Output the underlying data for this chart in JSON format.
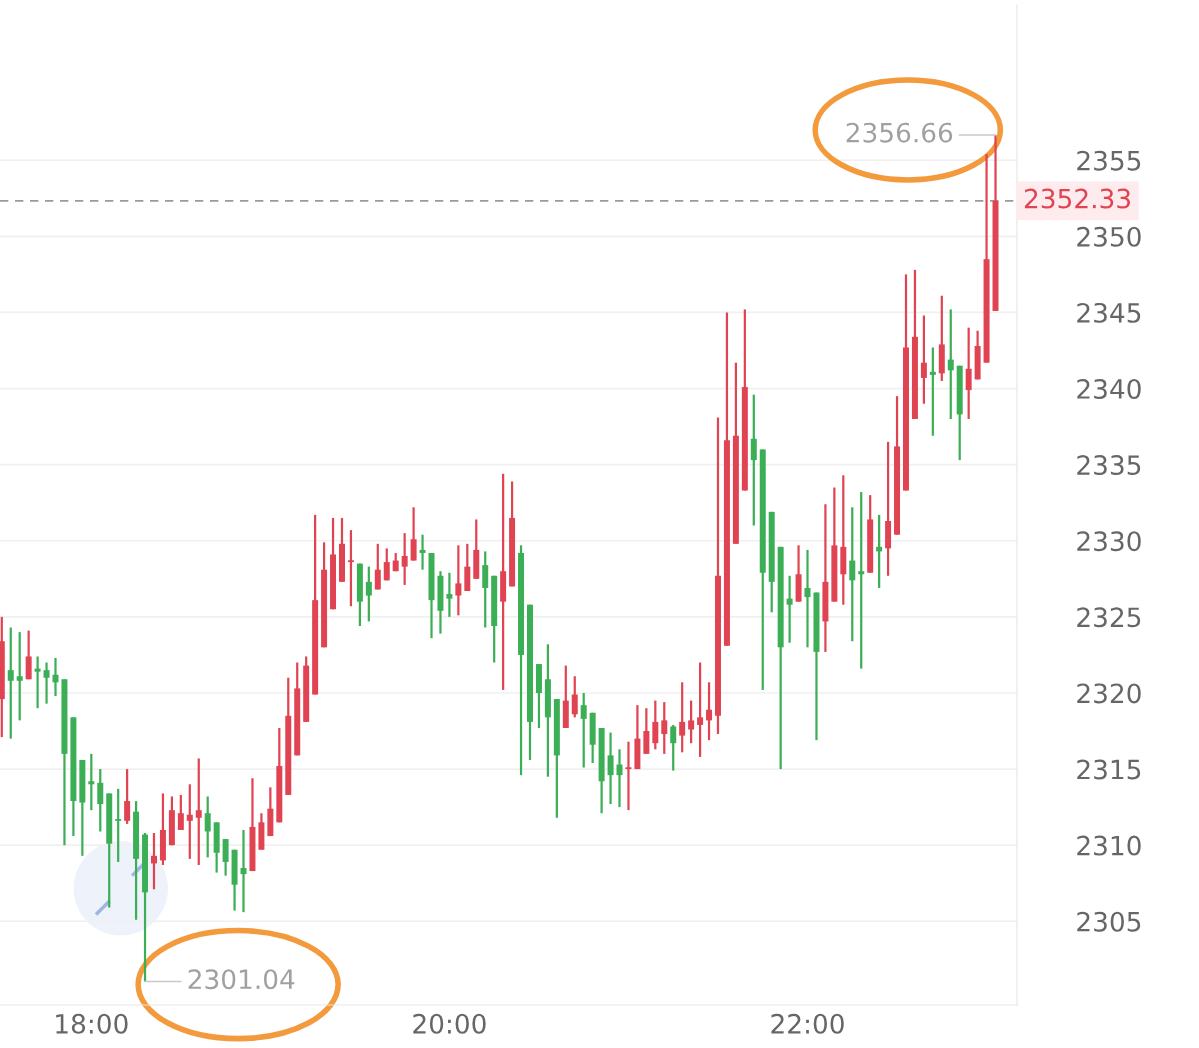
{
  "chart_data": {
    "type": "candlestick",
    "x": [
      17.5,
      17.55,
      17.6,
      17.65,
      17.7,
      17.75,
      17.8,
      17.85,
      17.9,
      17.95,
      18.0,
      18.05,
      18.1,
      18.15,
      18.2,
      18.25,
      18.3,
      18.35,
      18.4,
      18.45,
      18.5,
      18.55,
      18.6,
      18.65,
      18.7,
      18.75,
      18.8,
      18.85,
      18.9,
      18.95,
      19.0,
      19.05,
      19.1,
      19.15,
      19.2,
      19.25,
      19.3,
      19.35,
      19.4,
      19.45,
      19.5,
      19.55,
      19.6,
      19.65,
      19.7,
      19.75,
      19.8,
      19.85,
      19.9,
      19.95,
      20.0,
      20.05,
      20.1,
      20.15,
      20.2,
      20.25,
      20.3,
      20.35,
      20.4,
      20.45,
      20.5,
      20.55,
      20.6,
      20.65,
      20.7,
      20.75,
      20.8,
      20.85,
      20.9,
      20.95,
      21.0,
      21.05,
      21.1,
      21.15,
      21.2,
      21.25,
      21.3,
      21.35,
      21.4,
      21.45,
      21.5,
      21.55,
      21.6,
      21.65,
      21.7,
      21.75,
      21.8,
      21.85,
      21.9,
      21.95,
      22.0,
      22.05,
      22.1,
      22.15,
      22.2,
      22.25,
      22.3,
      22.35,
      22.4,
      22.45,
      22.5,
      22.55,
      22.6,
      22.65,
      22.7,
      22.75,
      22.8,
      22.85,
      22.9,
      22.95,
      23.0,
      23.05
    ],
    "ohlc": [
      [
        2319.6,
        2325.0,
        2317.1,
        2323.4
      ],
      [
        2321.5,
        2324.3,
        2317.0,
        2320.8
      ],
      [
        2321.1,
        2324.0,
        2318.2,
        2320.8
      ],
      [
        2320.9,
        2324.1,
        2320.9,
        2322.4
      ],
      [
        2321.6,
        2322.4,
        2319.0,
        2321.4
      ],
      [
        2321.5,
        2322.0,
        2319.3,
        2321.0
      ],
      [
        2321.2,
        2322.3,
        2319.8,
        2320.7
      ],
      [
        2320.9,
        2320.9,
        2310.0,
        2316.0
      ],
      [
        2318.4,
        2318.4,
        2310.6,
        2312.9
      ],
      [
        2315.6,
        2315.6,
        2309.3,
        2312.8
      ],
      [
        2314.2,
        2316.0,
        2312.3,
        2314.0
      ],
      [
        2314.1,
        2315.0,
        2310.9,
        2312.7
      ],
      [
        2313.4,
        2313.4,
        2305.9,
        2310.1
      ],
      [
        2311.7,
        2313.7,
        2308.9,
        2311.6
      ],
      [
        2311.6,
        2315.0,
        2311.4,
        2312.9
      ],
      [
        2312.2,
        2312.9,
        2305.1,
        2309.1
      ],
      [
        2310.7,
        2310.8,
        2301.04,
        2306.9
      ],
      [
        2308.8,
        2310.8,
        2307.1,
        2309.3
      ],
      [
        2309.0,
        2313.4,
        2308.7,
        2311.0
      ],
      [
        2310.0,
        2313.2,
        2310.0,
        2312.3
      ],
      [
        2311.0,
        2313.3,
        2311.0,
        2312.1
      ],
      [
        2311.6,
        2314.0,
        2309.1,
        2312.0
      ],
      [
        2311.8,
        2315.7,
        2308.7,
        2312.3
      ],
      [
        2312.1,
        2313.2,
        2309.2,
        2310.9
      ],
      [
        2311.5,
        2311.5,
        2308.2,
        2309.5
      ],
      [
        2310.4,
        2310.4,
        2308.0,
        2308.9
      ],
      [
        2309.7,
        2309.7,
        2305.7,
        2307.4
      ],
      [
        2308.5,
        2311.0,
        2305.6,
        2308.1
      ],
      [
        2308.3,
        2314.4,
        2308.3,
        2311.2
      ],
      [
        2309.7,
        2312.1,
        2309.7,
        2311.5
      ],
      [
        2310.6,
        2313.8,
        2310.6,
        2312.4
      ],
      [
        2311.5,
        2317.7,
        2311.5,
        2315.2
      ],
      [
        2313.3,
        2321.0,
        2313.3,
        2318.5
      ],
      [
        2315.9,
        2322.0,
        2315.9,
        2320.3
      ],
      [
        2318.1,
        2322.4,
        2318.1,
        2321.8
      ],
      [
        2319.9,
        2331.7,
        2319.9,
        2326.1
      ],
      [
        2323.0,
        2329.9,
        2323.0,
        2328.1
      ],
      [
        2325.5,
        2331.5,
        2325.5,
        2329.1
      ],
      [
        2327.3,
        2331.5,
        2327.3,
        2329.8
      ],
      [
        2328.6,
        2330.7,
        2325.7,
        2328.7
      ],
      [
        2328.5,
        2328.5,
        2324.4,
        2326.0
      ],
      [
        2327.3,
        2328.3,
        2324.7,
        2326.4
      ],
      [
        2326.8,
        2329.8,
        2326.8,
        2328.1
      ],
      [
        2327.4,
        2329.5,
        2327.4,
        2328.6
      ],
      [
        2328.0,
        2329.2,
        2328.0,
        2328.7
      ],
      [
        2328.3,
        2330.5,
        2327.1,
        2329.0
      ],
      [
        2328.7,
        2332.2,
        2328.7,
        2330.1
      ],
      [
        2329.4,
        2330.4,
        2328.1,
        2329.2
      ],
      [
        2329.2,
        2329.2,
        2323.6,
        2326.1
      ],
      [
        2327.7,
        2328.0,
        2323.9,
        2325.4
      ],
      [
        2326.5,
        2327.9,
        2325.0,
        2326.2
      ],
      [
        2326.4,
        2329.7,
        2325.1,
        2327.2
      ],
      [
        2326.7,
        2329.8,
        2326.7,
        2328.3
      ],
      [
        2327.5,
        2331.4,
        2327.5,
        2329.4
      ],
      [
        2328.4,
        2329.3,
        2324.3,
        2326.9
      ],
      [
        2327.7,
        2327.7,
        2322.0,
        2324.4
      ],
      [
        2326.0,
        2334.4,
        2320.2,
        2328.0
      ],
      [
        2327.0,
        2333.9,
        2327.0,
        2331.5
      ],
      [
        2329.2,
        2329.7,
        2314.6,
        2322.5
      ],
      [
        2325.8,
        2325.8,
        2315.6,
        2318.1
      ],
      [
        2321.9,
        2321.9,
        2317.7,
        2320.0
      ],
      [
        2320.9,
        2323.2,
        2314.5,
        2318.4
      ],
      [
        2319.6,
        2319.6,
        2311.8,
        2315.9
      ],
      [
        2317.7,
        2321.8,
        2317.7,
        2319.5
      ],
      [
        2318.6,
        2321.1,
        2318.4,
        2319.9
      ],
      [
        2319.2,
        2320.0,
        2315.1,
        2318.3
      ],
      [
        2318.7,
        2318.7,
        2315.4,
        2316.6
      ],
      [
        2317.7,
        2317.7,
        2312.1,
        2314.2
      ],
      [
        2315.9,
        2317.4,
        2312.7,
        2314.6
      ],
      [
        2315.3,
        2316.3,
        2312.5,
        2314.6
      ],
      [
        2315.0,
        2316.8,
        2312.3,
        2315.1
      ],
      [
        2315.0,
        2319.2,
        2315.0,
        2317.0
      ],
      [
        2316.0,
        2319.0,
        2316.0,
        2317.5
      ],
      [
        2316.7,
        2319.5,
        2316.3,
        2318.1
      ],
      [
        2317.3,
        2319.4,
        2316.0,
        2318.2
      ],
      [
        2317.8,
        2317.9,
        2314.9,
        2316.7
      ],
      [
        2317.2,
        2320.7,
        2316.1,
        2318.1
      ],
      [
        2317.6,
        2319.5,
        2316.7,
        2318.2
      ],
      [
        2317.9,
        2322.0,
        2315.8,
        2318.4
      ],
      [
        2318.2,
        2320.7,
        2316.9,
        2318.9
      ],
      [
        2318.5,
        2338.1,
        2317.3,
        2327.7
      ],
      [
        2323.1,
        2345.0,
        2323.1,
        2336.6
      ],
      [
        2329.8,
        2341.7,
        2329.8,
        2336.9
      ],
      [
        2333.3,
        2345.2,
        2333.3,
        2340.1
      ],
      [
        2336.7,
        2339.6,
        2331.0,
        2335.3
      ],
      [
        2336.0,
        2336.0,
        2320.2,
        2327.9
      ],
      [
        2331.9,
        2331.9,
        2325.3,
        2327.3
      ],
      [
        2329.6,
        2329.6,
        2315.0,
        2323.0
      ],
      [
        2326.2,
        2327.7,
        2323.3,
        2325.8
      ],
      [
        2326.0,
        2329.7,
        2326.0,
        2327.8
      ],
      [
        2326.9,
        2329.4,
        2323.0,
        2326.3
      ],
      [
        2326.6,
        2326.6,
        2316.9,
        2322.7
      ],
      [
        2324.7,
        2332.4,
        2322.7,
        2327.3
      ],
      [
        2326.0,
        2333.5,
        2326.0,
        2329.7
      ],
      [
        2327.8,
        2334.3,
        2325.8,
        2329.6
      ],
      [
        2328.7,
        2332.2,
        2323.4,
        2327.4
      ],
      [
        2328.0,
        2333.2,
        2321.6,
        2327.8
      ],
      [
        2327.9,
        2333.0,
        2327.9,
        2331.4
      ],
      [
        2329.6,
        2331.7,
        2326.9,
        2329.3
      ],
      [
        2329.5,
        2336.5,
        2327.7,
        2331.3
      ],
      [
        2330.4,
        2339.5,
        2330.4,
        2336.2
      ],
      [
        2333.3,
        2347.5,
        2333.3,
        2342.7
      ],
      [
        2338.0,
        2347.8,
        2338.0,
        2343.4
      ],
      [
        2340.7,
        2344.8,
        2339.0,
        2341.7
      ],
      [
        2341.1,
        2342.7,
        2336.9,
        2340.9
      ],
      [
        2341.0,
        2346.1,
        2340.5,
        2342.9
      ],
      [
        2341.9,
        2345.2,
        2338.0,
        2341.2
      ],
      [
        2341.5,
        2341.5,
        2335.3,
        2338.3
      ],
      [
        2339.9,
        2344.0,
        2338.0,
        2341.3
      ],
      [
        2340.6,
        2343.8,
        2340.6,
        2342.8
      ],
      [
        2341.7,
        2355.4,
        2341.7,
        2348.5
      ],
      [
        2345.1,
        2356.66,
        2345.1,
        2352.33
      ]
    ],
    "colors": [
      "#e04452",
      "#3cae56",
      "#3cae56",
      "#e04452",
      "#3cae56",
      "#3cae56",
      "#3cae56",
      "#3cae56",
      "#3cae56",
      "#3cae56",
      "#3cae56",
      "#3cae56",
      "#3cae56",
      "#3cae56",
      "#e04452",
      "#3cae56",
      "#3cae56",
      "#e04452",
      "#e04452",
      "#e04452",
      "#e04452",
      "#e04452",
      "#e04452",
      "#3cae56",
      "#3cae56",
      "#3cae56",
      "#3cae56",
      "#3cae56",
      "#e04452",
      "#e04452",
      "#e04452",
      "#e04452",
      "#e04452",
      "#e04452",
      "#e04452",
      "#e04452",
      "#e04452",
      "#e04452",
      "#e04452",
      "#e04452",
      "#3cae56",
      "#3cae56",
      "#e04452",
      "#e04452",
      "#e04452",
      "#e04452",
      "#e04452",
      "#3cae56",
      "#3cae56",
      "#3cae56",
      "#3cae56",
      "#e04452",
      "#e04452",
      "#e04452",
      "#3cae56",
      "#3cae56",
      "#e04452",
      "#e04452",
      "#3cae56",
      "#3cae56",
      "#3cae56",
      "#3cae56",
      "#3cae56",
      "#e04452",
      "#e04452",
      "#3cae56",
      "#3cae56",
      "#3cae56",
      "#3cae56",
      "#3cae56",
      "#e04452",
      "#e04452",
      "#e04452",
      "#e04452",
      "#e04452",
      "#3cae56",
      "#e04452",
      "#e04452",
      "#e04452",
      "#e04452",
      "#e04452",
      "#e04452",
      "#e04452",
      "#e04452",
      "#3cae56",
      "#3cae56",
      "#3cae56",
      "#3cae56",
      "#3cae56",
      "#e04452",
      "#3cae56",
      "#3cae56",
      "#e04452",
      "#e04452",
      "#e04452",
      "#3cae56",
      "#3cae56",
      "#e04452",
      "#3cae56",
      "#e04452",
      "#e04452",
      "#e04452",
      "#e04452",
      "#e04452",
      "#3cae56",
      "#e04452",
      "#3cae56",
      "#3cae56",
      "#e04452",
      "#e04452",
      "#e04452",
      "#e04452"
    ],
    "xlim": [
      17.49,
      23.17
    ],
    "xticks": [
      {
        "value": 18,
        "label": "18:00"
      },
      {
        "value": 20,
        "label": "20:00"
      },
      {
        "value": 22,
        "label": "22:00"
      }
    ],
    "ylim": [
      2299.5,
      2365.2
    ],
    "yticks": [
      2305,
      2310,
      2315,
      2320,
      2325,
      2330,
      2335,
      2340,
      2345,
      2350,
      2355
    ],
    "grid": "y",
    "ref_lines": [
      {
        "axis": "y",
        "value": 2352.33,
        "label": "2352.33",
        "color": "#9a9a9a",
        "line_style": "dashed"
      }
    ],
    "annotations": [
      {
        "text": "2356.66",
        "x": 23.05,
        "y": 2356.66
      },
      {
        "text": "2301.04",
        "x": 18.3,
        "y": 2301.04
      }
    ]
  }
}
